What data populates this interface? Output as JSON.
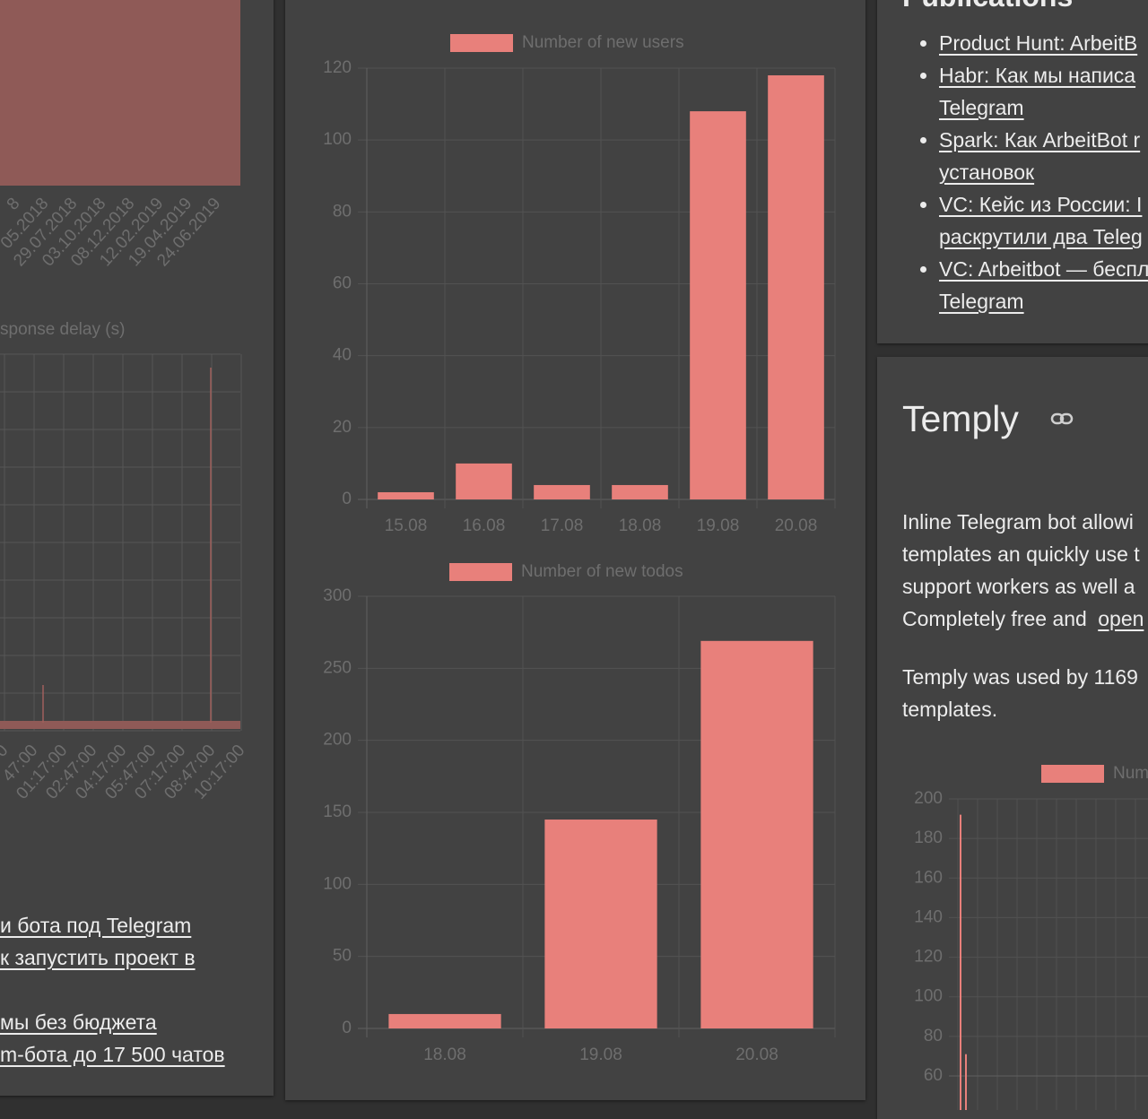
{
  "left": {
    "area_chart": {
      "xtick_labels": [
        "8",
        "05.2018",
        "29.07.2018",
        "03.10.2018",
        "08.12.2018",
        "12.02.2019",
        "19.04.2019",
        "24.06.2019"
      ]
    },
    "delay_chart": {
      "legend": "sponse delay (s)",
      "xtick_labels": [
        "0",
        "47:00",
        "01:17:00",
        "02:47:00",
        "04:17:00",
        "05:47:00",
        "07:17:00",
        "08:47:00",
        "10:17:00"
      ]
    },
    "links": [
      "и бота под Telegram",
      "к запустить проект в",
      "мы без бюджета",
      "m-бота до 17 500 чатов"
    ]
  },
  "chart_data": [
    {
      "type": "bar",
      "legend": "Number of new users",
      "color": "#e8807b",
      "categories": [
        "15.08",
        "16.08",
        "17.08",
        "18.08",
        "19.08",
        "20.08"
      ],
      "values": [
        2,
        10,
        4,
        4,
        108,
        118
      ],
      "ylim": [
        0,
        120
      ],
      "yticks": [
        0,
        20,
        40,
        60,
        80,
        100,
        120
      ],
      "grid": true
    },
    {
      "type": "bar",
      "legend": "Number of new todos",
      "color": "#e8807b",
      "categories": [
        "18.08",
        "19.08",
        "20.08"
      ],
      "values": [
        10,
        145,
        269
      ],
      "ylim": [
        0,
        300
      ],
      "yticks": [
        0,
        50,
        100,
        150,
        200,
        250,
        300
      ],
      "grid": true
    },
    {
      "type": "spike",
      "legend": "Num",
      "color": "#e8807b",
      "categories": [
        null,
        null
      ],
      "values": [
        192,
        71
      ],
      "ylim": [
        60,
        200
      ],
      "yticks": [
        60,
        80,
        100,
        120,
        140,
        160,
        180,
        200
      ],
      "grid": true
    }
  ],
  "publications": {
    "title": "Publications",
    "items": [
      [
        "Product Hunt: ArbeitB"
      ],
      [
        "Habr: Как мы написа",
        "Telegram"
      ],
      [
        "Spark: Как ArbeitBot r",
        "установок"
      ],
      [
        "VC: Кейс из России: I",
        "раскрутили два Teleg"
      ],
      [
        "VC: Arbeitbot — беспл",
        "Telegram"
      ]
    ]
  },
  "temply": {
    "title": "Temply",
    "paragraph1": [
      "Inline Telegram bot allowi",
      "templates an quickly use t",
      "support workers as well a"
    ],
    "paragraph1_last": {
      "text": "Completely free and",
      "link": "open"
    },
    "paragraph2": [
      "Temply was used by 1169",
      "templates."
    ]
  }
}
